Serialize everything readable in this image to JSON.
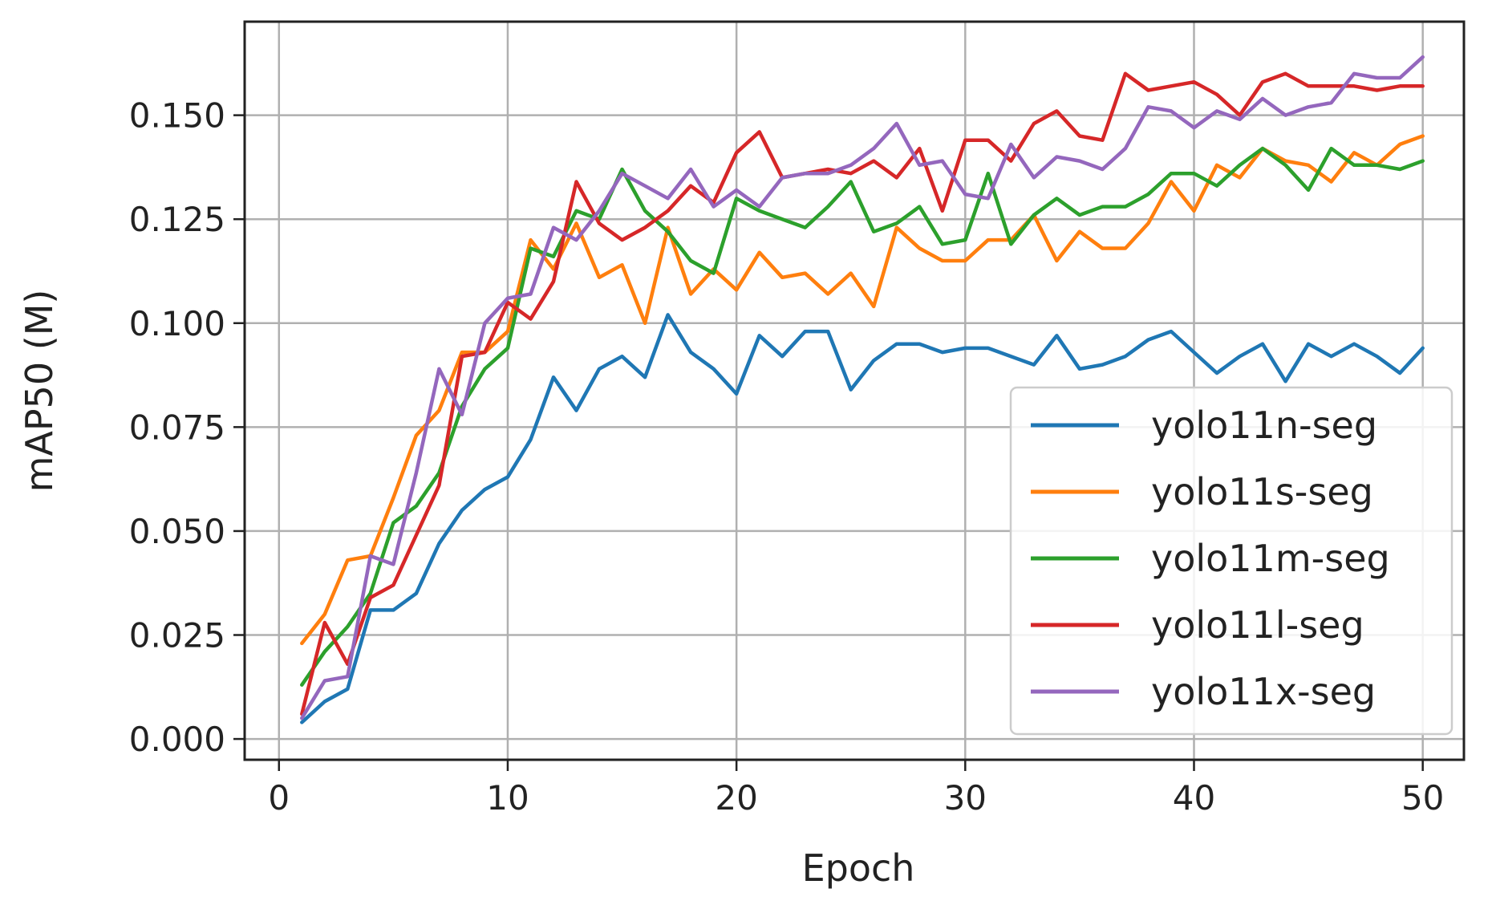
{
  "chart_data": {
    "type": "line",
    "title": "",
    "xlabel": "Epoch",
    "ylabel": "mAP50 (M)",
    "xlim": [
      -1.5,
      51.8
    ],
    "ylim": [
      -0.005,
      0.1725
    ],
    "xticks": [
      0,
      10,
      20,
      30,
      40,
      50
    ],
    "xtick_labels": [
      "0",
      "10",
      "20",
      "30",
      "40",
      "50"
    ],
    "yticks": [
      0.0,
      0.025,
      0.05,
      0.075,
      0.1,
      0.125,
      0.15
    ],
    "ytick_labels": [
      "0.000",
      "0.025",
      "0.050",
      "0.075",
      "0.100",
      "0.125",
      "0.150"
    ],
    "grid": true,
    "legend_position": "lower-right",
    "x": [
      1,
      2,
      3,
      4,
      5,
      6,
      7,
      8,
      9,
      10,
      11,
      12,
      13,
      14,
      15,
      16,
      17,
      18,
      19,
      20,
      21,
      22,
      23,
      24,
      25,
      26,
      27,
      28,
      29,
      30,
      31,
      32,
      33,
      34,
      35,
      36,
      37,
      38,
      39,
      40,
      41,
      42,
      43,
      44,
      45,
      46,
      47,
      48,
      49,
      50
    ],
    "series": [
      {
        "name": "yolo11n-seg",
        "color": "#1f77b4",
        "values": [
          0.004,
          0.009,
          0.012,
          0.031,
          0.031,
          0.035,
          0.047,
          0.055,
          0.06,
          0.063,
          0.072,
          0.087,
          0.079,
          0.089,
          0.092,
          0.087,
          0.102,
          0.093,
          0.089,
          0.083,
          0.097,
          0.092,
          0.098,
          0.098,
          0.084,
          0.091,
          0.095,
          0.095,
          0.093,
          0.094,
          0.094,
          0.092,
          0.09,
          0.097,
          0.089,
          0.09,
          0.092,
          0.096,
          0.098,
          0.093,
          0.088,
          0.092,
          0.095,
          0.086,
          0.095,
          0.092,
          0.095,
          0.092,
          0.088,
          0.094
        ]
      },
      {
        "name": "yolo11s-seg",
        "color": "#ff7f0e",
        "values": [
          0.023,
          0.03,
          0.043,
          0.044,
          0.058,
          0.073,
          0.079,
          0.093,
          0.093,
          0.098,
          0.12,
          0.113,
          0.124,
          0.111,
          0.114,
          0.1,
          0.123,
          0.107,
          0.113,
          0.108,
          0.117,
          0.111,
          0.112,
          0.107,
          0.112,
          0.104,
          0.123,
          0.118,
          0.115,
          0.115,
          0.12,
          0.12,
          0.126,
          0.115,
          0.122,
          0.118,
          0.118,
          0.124,
          0.134,
          0.127,
          0.138,
          0.135,
          0.142,
          0.139,
          0.138,
          0.134,
          0.141,
          0.138,
          0.143,
          0.145
        ]
      },
      {
        "name": "yolo11m-seg",
        "color": "#2ca02c",
        "values": [
          0.013,
          0.021,
          0.027,
          0.035,
          0.052,
          0.056,
          0.064,
          0.08,
          0.089,
          0.094,
          0.118,
          0.116,
          0.127,
          0.125,
          0.137,
          0.127,
          0.122,
          0.115,
          0.112,
          0.13,
          0.127,
          0.125,
          0.123,
          0.128,
          0.134,
          0.122,
          0.124,
          0.128,
          0.119,
          0.12,
          0.136,
          0.119,
          0.126,
          0.13,
          0.126,
          0.128,
          0.128,
          0.131,
          0.136,
          0.136,
          0.133,
          0.138,
          0.142,
          0.138,
          0.132,
          0.142,
          0.138,
          0.138,
          0.137,
          0.139
        ]
      },
      {
        "name": "yolo11l-seg",
        "color": "#d62728",
        "values": [
          0.006,
          0.028,
          0.018,
          0.034,
          0.037,
          0.049,
          0.061,
          0.092,
          0.093,
          0.105,
          0.101,
          0.11,
          0.134,
          0.124,
          0.12,
          0.123,
          0.127,
          0.133,
          0.129,
          0.141,
          0.146,
          0.135,
          0.136,
          0.137,
          0.136,
          0.139,
          0.135,
          0.142,
          0.127,
          0.144,
          0.144,
          0.139,
          0.148,
          0.151,
          0.145,
          0.144,
          0.16,
          0.156,
          0.157,
          0.158,
          0.155,
          0.15,
          0.158,
          0.16,
          0.157,
          0.157,
          0.157,
          0.156,
          0.157,
          0.157
        ]
      },
      {
        "name": "yolo11x-seg",
        "color": "#9467bd",
        "values": [
          0.005,
          0.014,
          0.015,
          0.044,
          0.042,
          0.064,
          0.089,
          0.078,
          0.1,
          0.106,
          0.107,
          0.123,
          0.12,
          0.127,
          0.136,
          0.133,
          0.13,
          0.137,
          0.128,
          0.132,
          0.128,
          0.135,
          0.136,
          0.136,
          0.138,
          0.142,
          0.148,
          0.138,
          0.139,
          0.131,
          0.13,
          0.143,
          0.135,
          0.14,
          0.139,
          0.137,
          0.142,
          0.152,
          0.151,
          0.147,
          0.151,
          0.149,
          0.154,
          0.15,
          0.152,
          0.153,
          0.16,
          0.159,
          0.159,
          0.164
        ]
      }
    ]
  }
}
